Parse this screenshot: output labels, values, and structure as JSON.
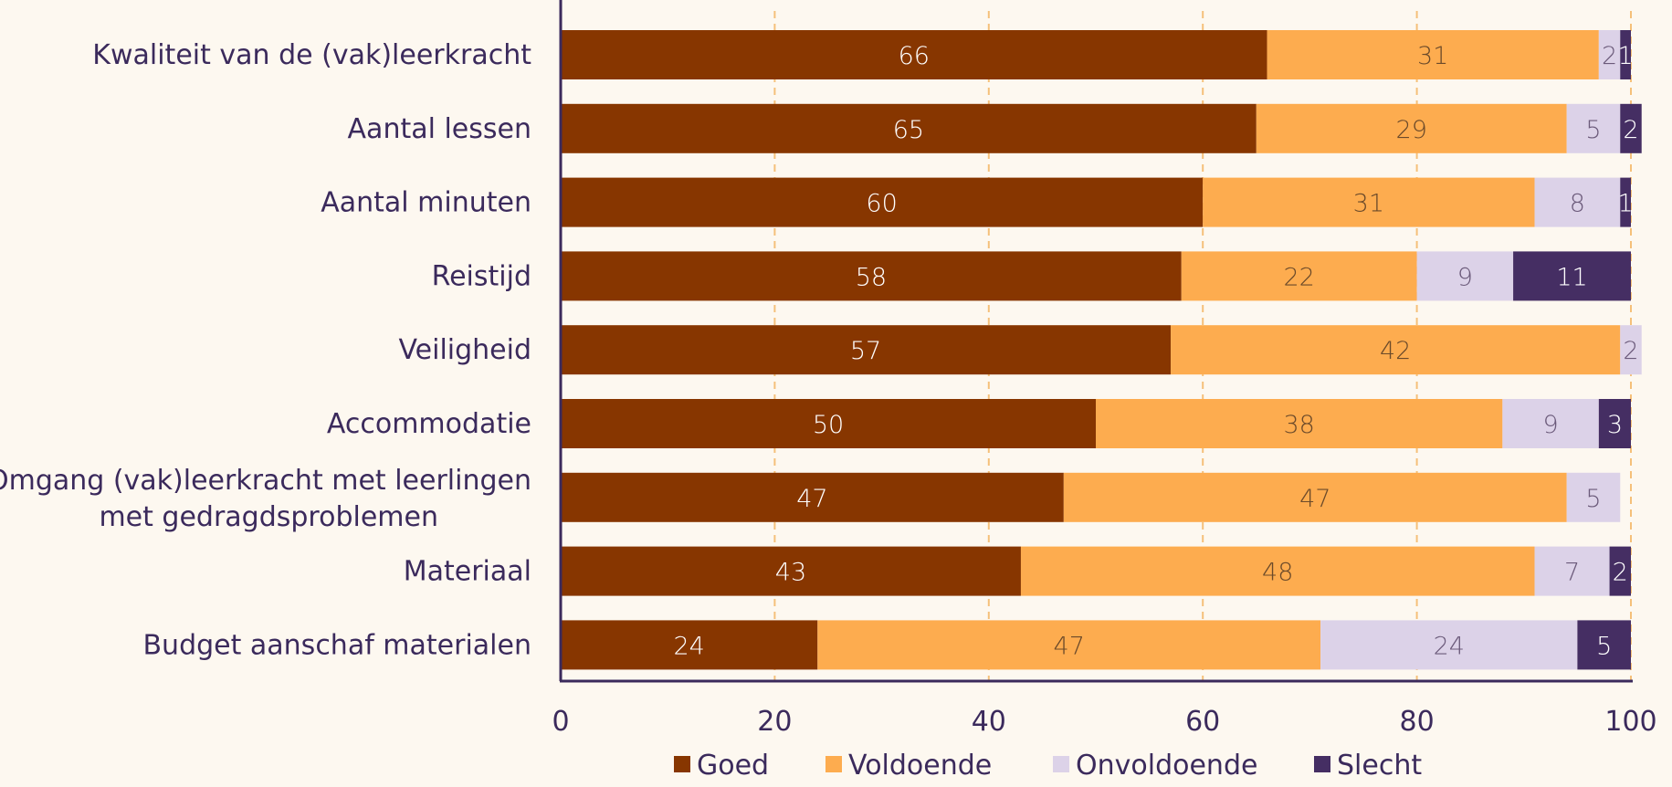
{
  "chart_data": {
    "type": "bar",
    "orientation": "horizontal",
    "stacked": true,
    "categories": [
      "Kwaliteit van de (vak)leerkracht",
      "Aantal lessen",
      "Aantal minuten",
      "Reistijd",
      "Veiligheid",
      "Accommodatie",
      "Omgang (vak)leerkracht met leerlingen met gedragdsproblemen",
      "Materiaal",
      "Budget aanschaf materialen"
    ],
    "category_lines": [
      [
        "Kwaliteit van de (vak)leerkracht"
      ],
      [
        "Aantal lessen"
      ],
      [
        "Aantal minuten"
      ],
      [
        "Reistijd"
      ],
      [
        "Veiligheid"
      ],
      [
        "Accommodatie"
      ],
      [
        "Omgang (vak)leerkracht met leerlingen",
        "met gedragdsproblemen"
      ],
      [
        "Materiaal"
      ],
      [
        "Budget aanschaf materialen"
      ]
    ],
    "series": [
      {
        "name": "Goed",
        "color": "#873600",
        "label_color": "#ffffff",
        "values": [
          66,
          65,
          60,
          58,
          57,
          50,
          47,
          43,
          24
        ]
      },
      {
        "name": "Voldoende",
        "color": "#fdac4f",
        "label_color": "#6b4a2a",
        "values": [
          31,
          29,
          31,
          22,
          42,
          38,
          47,
          48,
          47
        ]
      },
      {
        "name": "Onvoldoende",
        "color": "#dcd2e8",
        "label_color": "#6b5a7a",
        "values": [
          2,
          5,
          8,
          9,
          2,
          9,
          5,
          7,
          24
        ]
      },
      {
        "name": "Slecht",
        "color": "#452e63",
        "label_color": "#ffffff",
        "values": [
          1,
          2,
          1,
          11,
          0,
          3,
          0,
          2,
          5
        ]
      }
    ],
    "xlim": [
      0,
      100
    ],
    "xticks": [
      0,
      20,
      40,
      60,
      80,
      100
    ],
    "grid": "vertical dashed",
    "grid_color": "#f5c07a",
    "axis_color": "#3b2a5c",
    "legend_position": "bottom"
  }
}
